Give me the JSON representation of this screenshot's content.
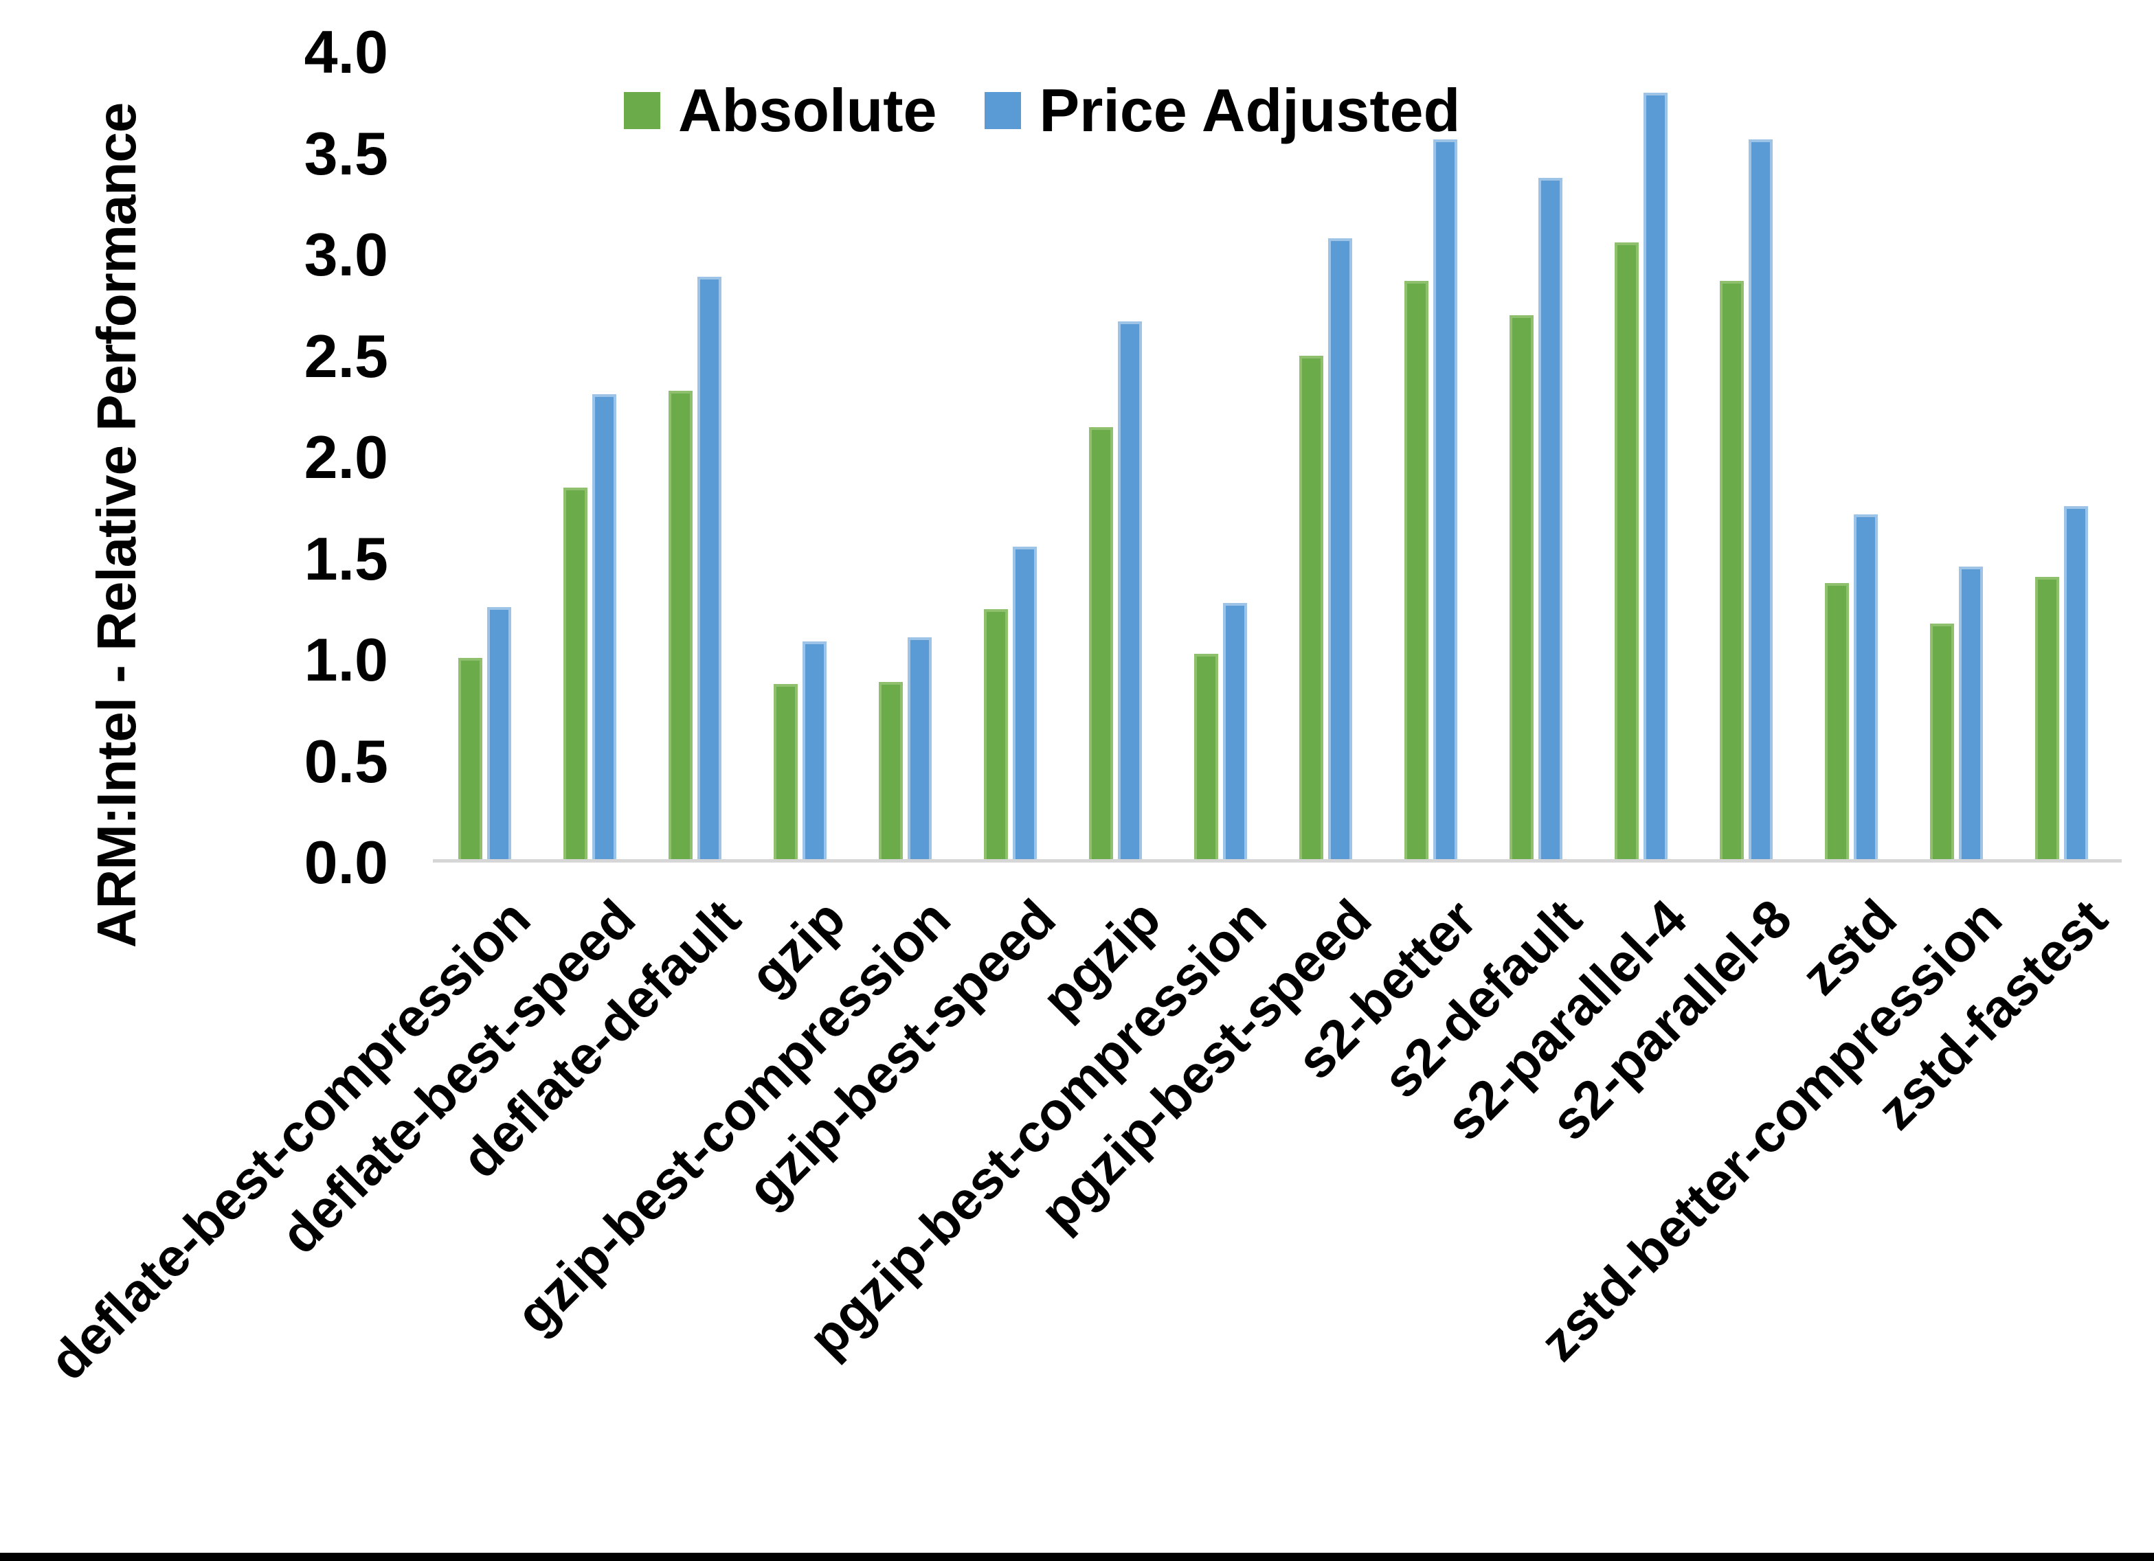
{
  "chart_data": {
    "type": "bar",
    "title": "",
    "xlabel": "",
    "ylabel": "ARM:Intel - Relative Performance",
    "ylim": [
      0.0,
      4.0
    ],
    "ytick_step": 0.5,
    "ytick_labels": [
      "0.0",
      "0.5",
      "1.0",
      "1.5",
      "2.0",
      "2.5",
      "3.0",
      "3.5",
      "4.0"
    ],
    "grid": false,
    "legend_position": "top-center",
    "x_label_rotation_deg": 45,
    "categories": [
      "deflate-best-compression",
      "deflate-best-speed",
      "deflate-default",
      "gzip",
      "gzip-best-compression",
      "gzip-best-speed",
      "pgzip",
      "pgzip-best-compression",
      "pgzip-best-speed",
      "s2-better",
      "s2-default",
      "s2-parallel-4",
      "s2-parallel-8",
      "zstd",
      "zstd-better-compression",
      "zstd-fastest"
    ],
    "series": [
      {
        "name": "Absolute",
        "color": "#6BAB4A",
        "edge_color": "#8FC06E",
        "values": [
          1.0,
          1.84,
          2.32,
          0.87,
          0.88,
          1.24,
          2.14,
          1.02,
          2.49,
          2.86,
          2.69,
          3.05,
          2.86,
          1.37,
          1.17,
          1.4
        ]
      },
      {
        "name": "Price Adjusted",
        "color": "#5B9BD5",
        "edge_color": "#9DC3E6",
        "values": [
          1.25,
          2.3,
          2.88,
          1.08,
          1.1,
          1.55,
          2.66,
          1.27,
          3.07,
          3.56,
          3.37,
          3.79,
          3.56,
          1.71,
          1.45,
          1.75
        ]
      }
    ],
    "axis_line_color": "#d6d6d6",
    "text_color": "#000000",
    "bottom_border_color": "#000000"
  }
}
